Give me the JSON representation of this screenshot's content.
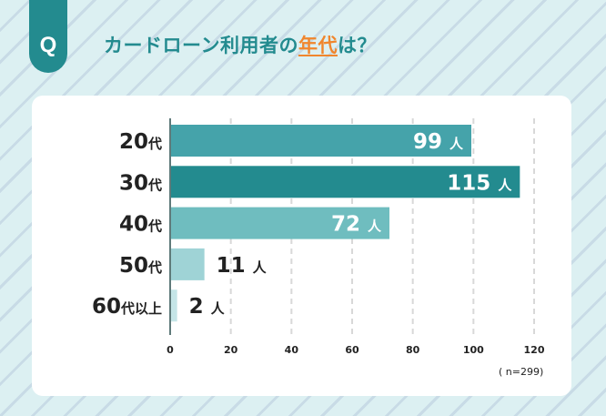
{
  "header": {
    "badge": "Q",
    "title_pre": "カードローン利用者の",
    "title_highlight": "年代",
    "title_post": "は？"
  },
  "colors": {
    "accent": "#238b8f",
    "highlight": "#f0862d"
  },
  "chart_data": {
    "type": "bar",
    "orientation": "horizontal",
    "title": "カードローン利用者の年代は？",
    "categories": [
      "20代",
      "30代",
      "40代",
      "50代",
      "60代以上"
    ],
    "values": [
      99,
      115,
      72,
      11,
      2
    ],
    "unit": "人",
    "bar_colors": [
      "#45a3aa",
      "#238b8f",
      "#6fbdbf",
      "#9fd3d6",
      "#c5e5e7"
    ],
    "xlim": [
      0,
      120
    ],
    "xticks": [
      0,
      20,
      40,
      60,
      80,
      100,
      120
    ],
    "grid": true,
    "note": "( n=299)"
  }
}
